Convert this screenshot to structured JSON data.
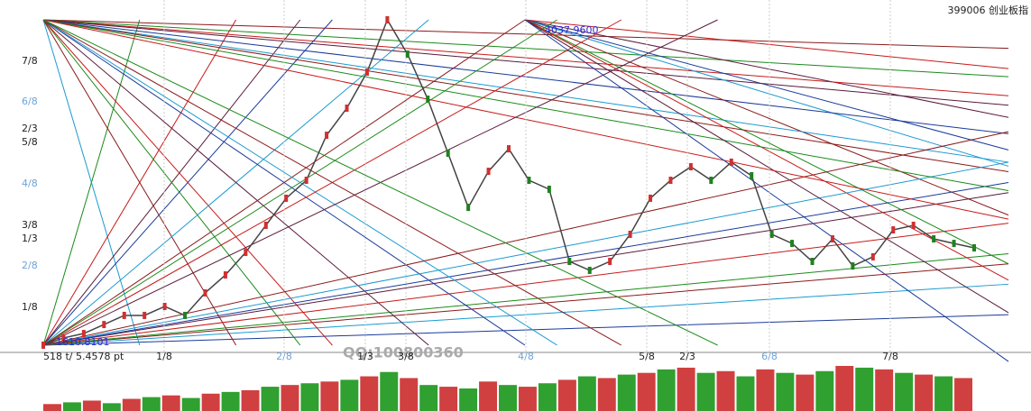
{
  "chart_data": {
    "type": "line",
    "title": "399006 创业板指",
    "high_label": "4037.9600",
    "low_label": "1610.8101",
    "scale_label": "518 t/ 5.4578 pt",
    "watermark": "QQ:100800360",
    "ylim": [
      1610.8101,
      4037.96
    ],
    "left_labels": [
      "7/8",
      "6/8",
      "2/3",
      "5/8",
      "4/8",
      "3/8",
      "1/3",
      "2/8",
      "1/8"
    ],
    "bottom_labels": [
      "1/8",
      "2/8",
      "1/3",
      "3/8",
      "4/8",
      "5/8",
      "2/3",
      "6/8",
      "7/8"
    ],
    "color": "#444444",
    "values": [
      1611,
      1665,
      1698,
      1765,
      1833,
      1833,
      1900,
      1833,
      2001,
      2135,
      2303,
      2505,
      2707,
      2841,
      3177,
      3379,
      3648,
      4038,
      3782,
      3446,
      3043,
      2639,
      2908,
      3076,
      2841,
      2774,
      2236,
      2169,
      2236,
      2438,
      2707,
      2841,
      2942,
      2841,
      2976,
      2875,
      2438,
      2370,
      2236,
      2404,
      2202,
      2270,
      2471,
      2505,
      2404,
      2370,
      2337
    ],
    "volume": [
      8,
      10,
      12,
      9,
      14,
      16,
      18,
      15,
      20,
      22,
      24,
      28,
      30,
      32,
      34,
      36,
      40,
      45,
      38,
      30,
      28,
      26,
      34,
      30,
      28,
      32,
      36,
      40,
      38,
      42,
      44,
      48,
      50,
      44,
      46,
      40,
      48,
      44,
      42,
      46,
      52,
      50,
      48,
      44,
      42,
      40,
      38
    ]
  }
}
